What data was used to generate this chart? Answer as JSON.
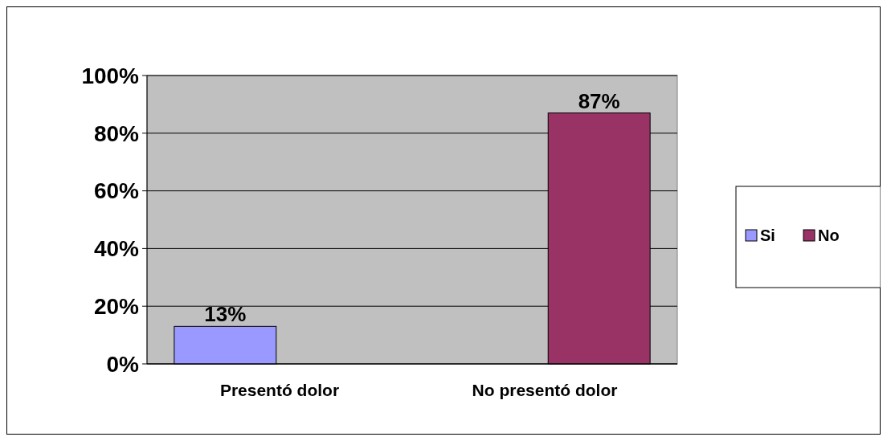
{
  "chart_data": {
    "type": "bar",
    "categories": [
      "Presentó dolor",
      "No presentó dolor"
    ],
    "series": [
      {
        "name": "Si",
        "color": "#9999ff",
        "values": [
          13,
          null
        ],
        "value_labels": [
          "13%",
          null
        ]
      },
      {
        "name": "No",
        "color": "#993366",
        "values": [
          null,
          87
        ],
        "value_labels": [
          null,
          "87%"
        ]
      }
    ],
    "ylim": [
      0,
      100
    ],
    "yticks": [
      {
        "value": 0,
        "label": "0%"
      },
      {
        "value": 20,
        "label": "20%"
      },
      {
        "value": 40,
        "label": "40%"
      },
      {
        "value": 60,
        "label": "60%"
      },
      {
        "value": 80,
        "label": "80%"
      },
      {
        "value": 100,
        "label": "100%"
      }
    ],
    "grid": "y",
    "legend": "right"
  }
}
